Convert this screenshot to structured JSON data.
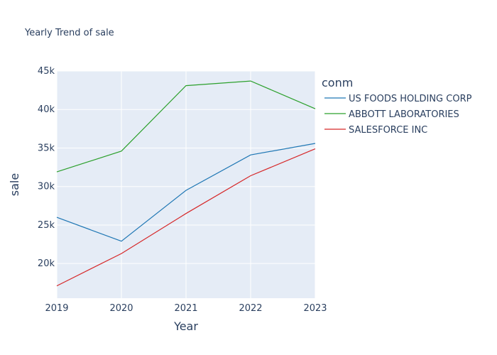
{
  "chart_data": {
    "type": "line",
    "title": "Yearly Trend of sale",
    "xlabel": "Year",
    "ylabel": "sale",
    "legend_title": "conm",
    "legend_position": "right",
    "grid": true,
    "x": [
      2019,
      2020,
      2021,
      2022,
      2023
    ],
    "x_tick_labels": [
      "2019",
      "2020",
      "2021",
      "2022",
      "2023"
    ],
    "xlim": [
      2019,
      2023
    ],
    "ylim": [
      15500,
      45000
    ],
    "y_ticks": [
      20000,
      25000,
      30000,
      35000,
      40000,
      45000
    ],
    "y_tick_labels": [
      "20k",
      "25k",
      "30k",
      "35k",
      "40k",
      "45k"
    ],
    "series": [
      {
        "name": "US FOODS HOLDING CORP",
        "color": "#1f77b4",
        "values": [
          26000,
          22900,
          29500,
          34100,
          35600
        ]
      },
      {
        "name": "ABBOTT LABORATORIES",
        "color": "#2ca02c",
        "values": [
          31900,
          34600,
          43100,
          43700,
          40100
        ]
      },
      {
        "name": "SALESFORCE INC",
        "color": "#d62728",
        "values": [
          17100,
          21300,
          26500,
          31400,
          34900
        ]
      }
    ]
  }
}
